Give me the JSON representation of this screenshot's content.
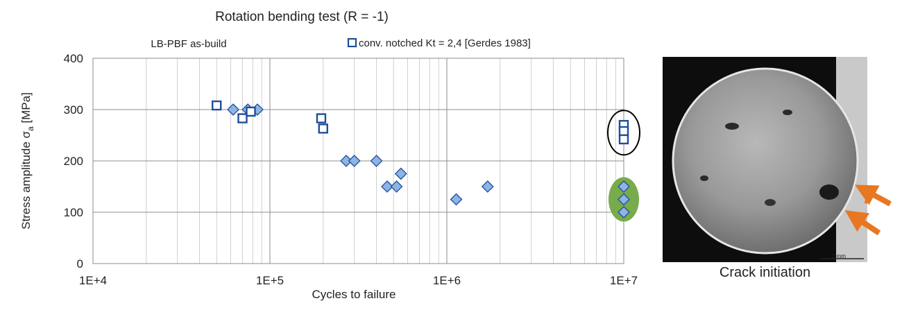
{
  "chart_data": {
    "type": "scatter",
    "title": "Rotation bending test (R = -1)",
    "subtitle": "LB-PBF as-build",
    "xlabel": "Cycles to failure",
    "ylabel_main": "Stress amplitude σ",
    "ylabel_sub": "a",
    "ylabel_unit": " [MPa]",
    "xscale": "log",
    "xlim": [
      10000,
      10000000
    ],
    "ylim": [
      0,
      400
    ],
    "xticks": [
      "1E+4",
      "1E+5",
      "1E+6",
      "1E+7"
    ],
    "yticks": [
      "0",
      "100",
      "200",
      "300",
      "400"
    ],
    "grid": true,
    "legend_position": "top",
    "series": [
      {
        "name": "",
        "marker": "diamond",
        "color": "#8db4e2",
        "edge": "#1f4e9a",
        "x": [
          62000,
          75000,
          85000,
          270000,
          300000,
          400000,
          460000,
          520000,
          550000,
          1130000,
          1700000,
          10000000,
          10000000,
          10000000
        ],
        "y": [
          300,
          300,
          300,
          200,
          200,
          200,
          150,
          150,
          175,
          125,
          150,
          150,
          125,
          100
        ]
      },
      {
        "name": "conv. notched Kt = 2,4 [Gerdes 1983]",
        "marker": "square-open",
        "color": "#ffffff",
        "edge": "#1f4e9a",
        "x": [
          50000,
          70000,
          78000,
          195000,
          200000,
          10000000,
          10000000,
          10000000
        ],
        "y": [
          308,
          283,
          296,
          283,
          263,
          270,
          258,
          242
        ]
      }
    ],
    "annotations": [
      {
        "shape": "ellipse-outline",
        "color": "#000000",
        "x": 10000000,
        "y": 255
      },
      {
        "shape": "ellipse-filled",
        "color": "#77ab4b",
        "x": 10000000,
        "y": 125
      }
    ]
  },
  "photo": {
    "caption": "Crack initiation",
    "scale_label": "1 mm",
    "arrow_color": "#e87722"
  }
}
